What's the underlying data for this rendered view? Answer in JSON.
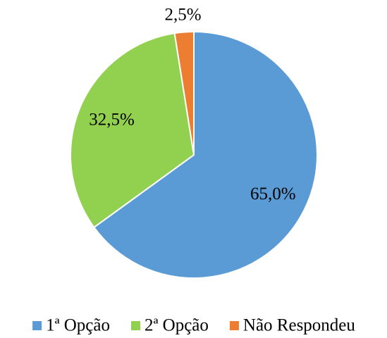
{
  "chart_data": {
    "type": "pie",
    "categories": [
      "1ª Opção",
      "2ª Opção",
      "Não Respondeu"
    ],
    "values": [
      65.0,
      32.5,
      2.5
    ],
    "value_labels": [
      "65,0%",
      "32,5%",
      "2,5%"
    ],
    "colors": [
      "#5b9bd5",
      "#92d050",
      "#ed7d31"
    ],
    "legend": "bottom"
  }
}
